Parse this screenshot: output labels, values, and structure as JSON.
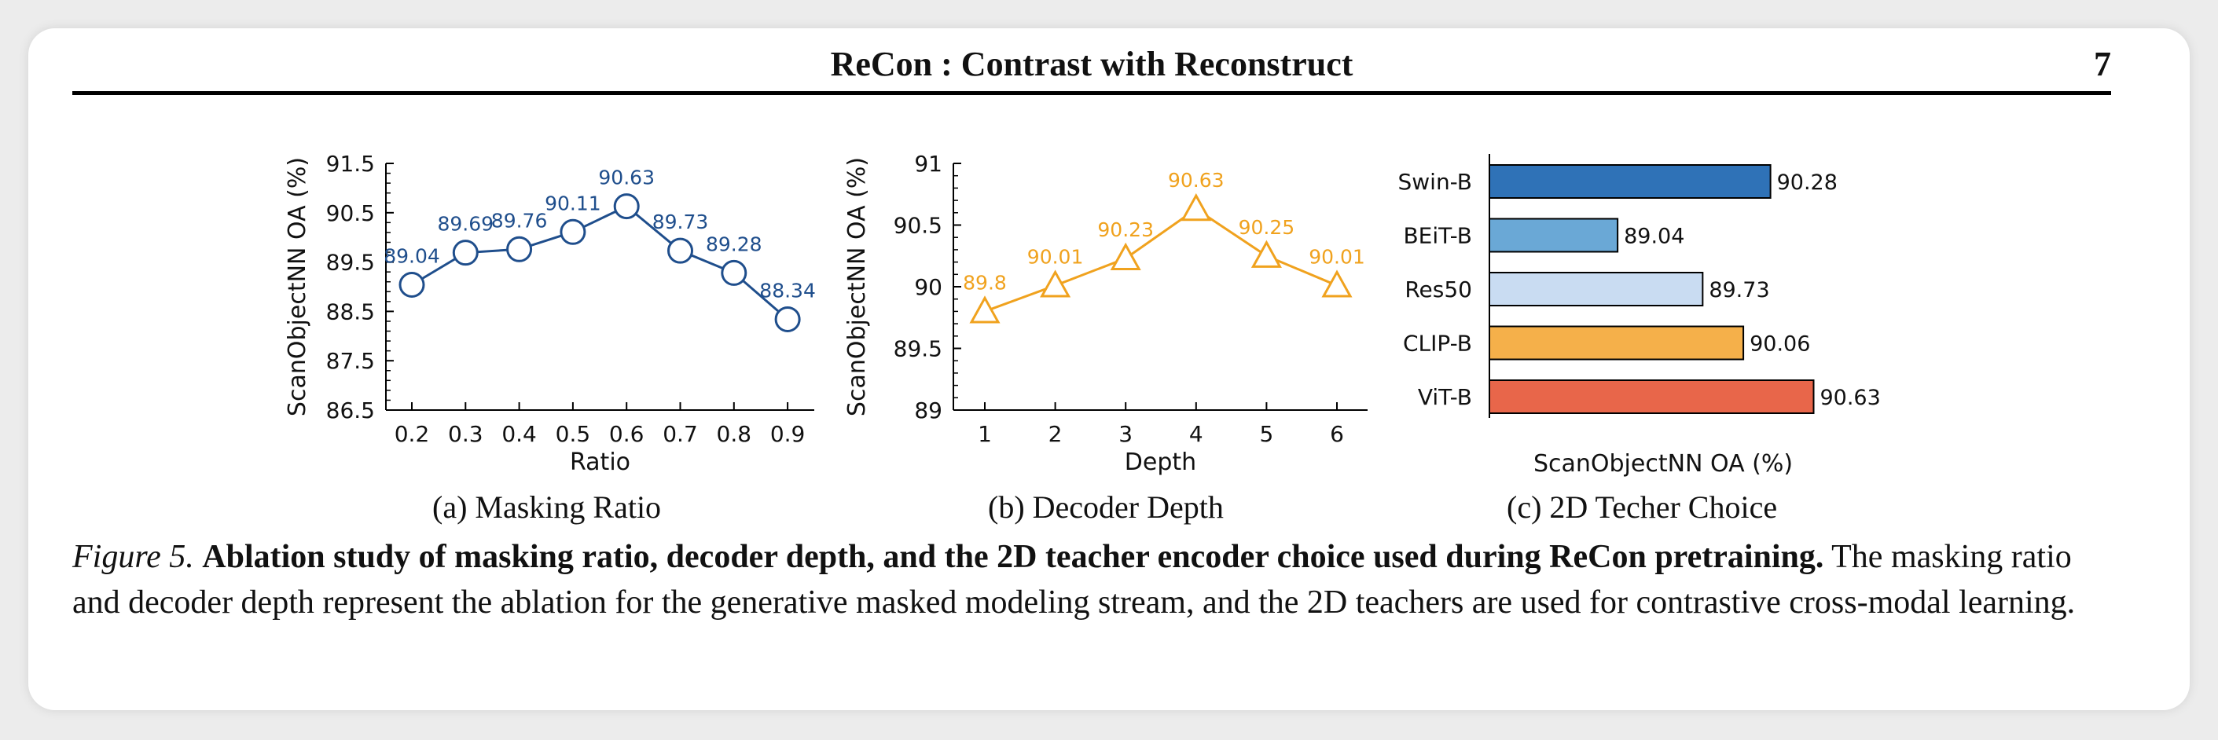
{
  "header": {
    "title": "ReCon : Contrast with Reconstruct",
    "page_number": "7"
  },
  "colors": {
    "blue": "#1f4e8c",
    "orange": "#f0a21e",
    "swin": "#2f72b7",
    "beit": "#6aa8d6",
    "res50": "#c9dcf2",
    "clip": "#f5b04a",
    "vit": "#e8664a"
  },
  "subcaptions": {
    "a": "(a) Masking Ratio",
    "b": "(b) Decoder Depth",
    "c": "(c) 2D Techer Choice"
  },
  "caption": {
    "label": "Figure 5.",
    "bold": "Ablation study of masking ratio, decoder depth, and the 2D teacher encoder choice used during ReCon pretraining.",
    "body": "The masking ratio and decoder depth represent the ablation for the generative masked modeling stream, and the 2D teachers are used for contrastive cross-modal learning."
  },
  "chart_data": [
    {
      "type": "line",
      "marker": "circle",
      "x": [
        0.2,
        0.3,
        0.4,
        0.5,
        0.6,
        0.7,
        0.8,
        0.9
      ],
      "x_ticks": [
        "0.2",
        "0.3",
        "0.4",
        "0.5",
        "0.6",
        "0.7",
        "0.8",
        "0.9"
      ],
      "values": [
        89.04,
        89.69,
        89.76,
        90.11,
        90.63,
        89.73,
        89.28,
        88.34
      ],
      "data_labels": [
        "89.04",
        "89.69",
        "89.76",
        "90.11",
        "90.63",
        "89.73",
        "89.28",
        "88.34"
      ],
      "xlabel": "Ratio",
      "ylabel": "ScanObjectNN OA (%)",
      "ylim": [
        86.5,
        91.5
      ],
      "y_ticks": [
        "86.5",
        "87.5",
        "88.5",
        "89.5",
        "90.5",
        "91.5"
      ],
      "y_tick_values": [
        86.5,
        87.5,
        88.5,
        89.5,
        90.5,
        91.5
      ]
    },
    {
      "type": "line",
      "marker": "triangle",
      "x": [
        1,
        2,
        3,
        4,
        5,
        6
      ],
      "x_ticks": [
        "1",
        "2",
        "3",
        "4",
        "5",
        "6"
      ],
      "values": [
        89.8,
        90.01,
        90.23,
        90.63,
        90.25,
        90.01
      ],
      "data_labels": [
        "89.8",
        "90.01",
        "90.23",
        "90.63",
        "90.25",
        "90.01"
      ],
      "xlabel": "Depth",
      "ylabel": "ScanObjectNN OA (%)",
      "ylim": [
        89,
        91
      ],
      "y_ticks": [
        "89",
        "89.5",
        "90",
        "90.5",
        "91"
      ],
      "y_tick_values": [
        89,
        89.5,
        90,
        90.5,
        91
      ]
    },
    {
      "type": "bar",
      "orientation": "horizontal",
      "categories": [
        "Swin-B",
        "BEiT-B",
        "Res50",
        "CLIP-B",
        "ViT-B"
      ],
      "values": [
        90.28,
        89.04,
        89.73,
        90.06,
        90.63
      ],
      "data_labels": [
        "90.28",
        "89.04",
        "89.73",
        "90.06",
        "90.63"
      ],
      "xlabel": "ScanObjectNN OA (%)",
      "xlim": [
        88.0,
        90.85
      ]
    }
  ]
}
